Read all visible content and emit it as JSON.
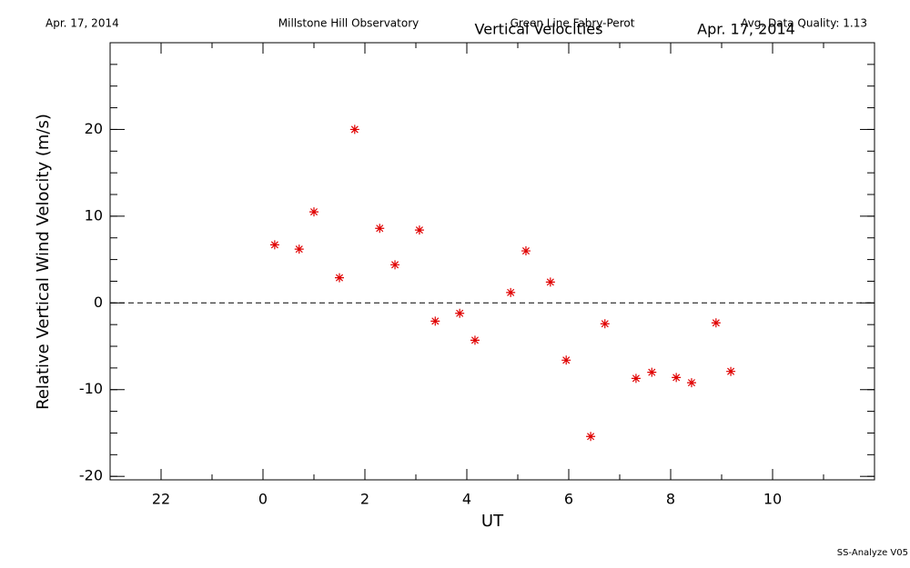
{
  "chart_data": {
    "type": "scatter",
    "date": "Apr. 17, 2014",
    "observatory": "Millstone Hill Observatory",
    "instrument": "Green Line Fabry-Perot",
    "quality": "Avg. Data Quality: 1.13",
    "title": "Vertical Velocities",
    "title_date": "Apr. 17, 2014",
    "footer": "SS-Analyze V05",
    "xlabel": "UT",
    "ylabel": "Relative Vertical Wind Velocity (m/s)",
    "xlim": [
      -3,
      12
    ],
    "ylim": [
      -20.4,
      30
    ],
    "xticks": [
      {
        "value": -2,
        "label": "22"
      },
      0,
      2,
      4,
      6,
      8,
      10
    ],
    "yticks": [
      -20,
      -10,
      0,
      10,
      20
    ],
    "minor_ticks": {
      "x": 1,
      "y": 2.5
    },
    "hline": 0,
    "series": [
      {
        "color": "#e00000",
        "x": [
          0.23,
          0.71,
          1.0,
          1.5,
          1.8,
          2.29,
          2.59,
          3.07,
          3.38,
          3.86,
          4.16,
          4.86,
          5.16,
          5.64,
          5.95,
          6.43,
          6.71,
          7.32,
          7.63,
          8.11,
          8.41,
          8.89,
          9.18
        ],
        "values": [
          6.7,
          6.2,
          10.5,
          2.9,
          20.0,
          8.6,
          4.4,
          8.4,
          -2.1,
          -1.2,
          -4.3,
          1.2,
          6.0,
          2.4,
          -6.6,
          -15.4,
          -2.4,
          -8.7,
          -8.0,
          -8.6,
          -9.2,
          -2.3,
          -7.9
        ]
      }
    ]
  }
}
